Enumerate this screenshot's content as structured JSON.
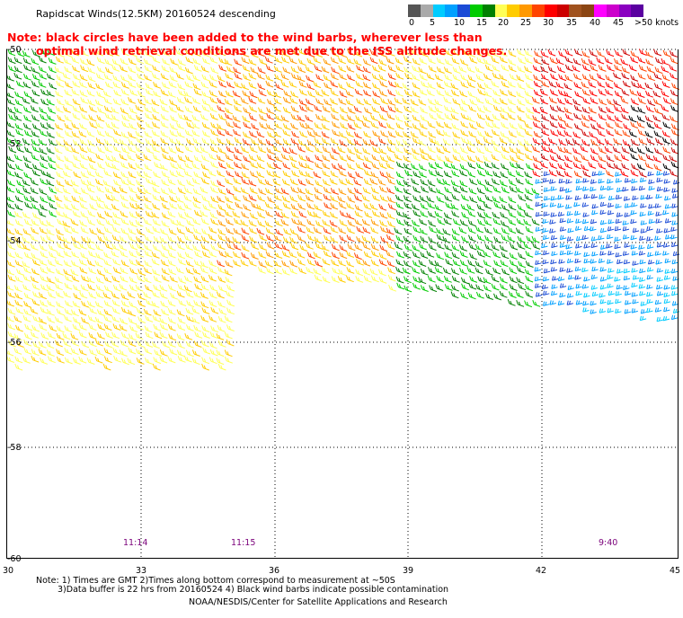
{
  "header": {
    "title": "Rapidscat Winds(12.5KM) 20160524 descending"
  },
  "note": {
    "line1": "Note: black circles have been added to the wind barbs, wherever less than",
    "line2": "optimal wind retrieval conditions are met due to the ISS altitude changes."
  },
  "scale": {
    "colors": [
      "#555555",
      "#aaaaaa",
      "#00ccff",
      "#00a0ff",
      "#1b4bd6",
      "#00cc00",
      "#008000",
      "#ffff55",
      "#ffcc00",
      "#ff9900",
      "#ff4400",
      "#ff0000",
      "#cc0000",
      "#a0521e",
      "#8b4513",
      "#ff00ff",
      "#cc00cc",
      "#8a00c0",
      "#5a00a0"
    ],
    "labels": [
      "0",
      "5",
      "10",
      "15",
      "20",
      "25",
      "30",
      "35",
      "40",
      "45",
      ">50 knots"
    ]
  },
  "axes": {
    "lat_labels": [
      "-50",
      "-52",
      "-54",
      "-56",
      "-58",
      "-60"
    ],
    "lon_labels": [
      "30",
      "33",
      "36",
      "39",
      "42",
      "45"
    ]
  },
  "pass_times": [
    "11:14",
    "11:15",
    "9:40"
  ],
  "footer": {
    "line1": "Note: 1) Times are GMT 2)Times along bottom correspond to measurement at ~50S",
    "line2": "3)Data buffer is 22 hrs from 20160524 4) Black wind barbs indicate possible contamination",
    "credit": "NOAA/NESDIS/Center for Satellite Applications and Research"
  }
}
